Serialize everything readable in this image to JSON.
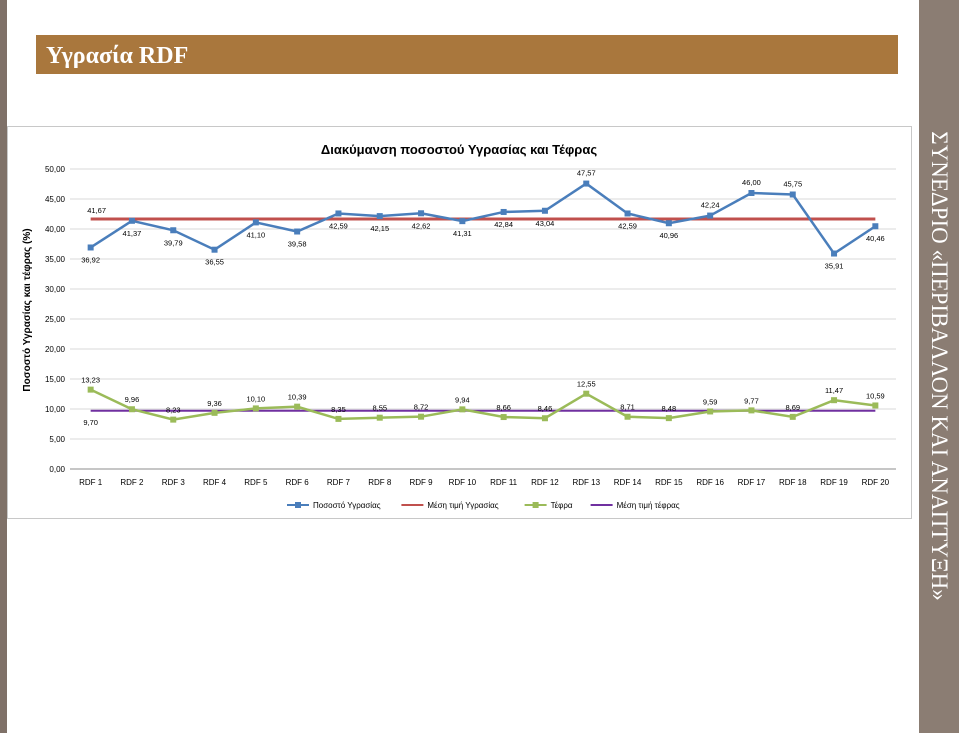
{
  "slide": {
    "title": "Υγρασία RDF",
    "side_text": "ΣΥΝΕΔΡΙΟ «ΠΕΡΙΒΑΛΛΟΝ ΚΑΙ ΑΝΑΠΤΥΞΗ»"
  },
  "colors": {
    "title_band": "#a9773d",
    "side_bar": "#8b7d73",
    "moisture": "#4a7ebb",
    "moisture_mean": "#c0504d",
    "ash": "#9bbb59",
    "ash_mean": "#7030a0"
  },
  "chart_data": {
    "type": "line",
    "title": "Διακύμανση ποσοστού Υγρασίας και Τέφρας",
    "ylabel": "Ποσοστό Υγρασίας και τέφρας (%)",
    "xlabel": "",
    "ylim": [
      0,
      50
    ],
    "yticks": [
      "0,00",
      "5,00",
      "10,00",
      "15,00",
      "20,00",
      "25,00",
      "30,00",
      "35,00",
      "40,00",
      "45,00",
      "50,00"
    ],
    "grid": true,
    "legend_position": "bottom",
    "categories": [
      "RDF 1",
      "RDF 2",
      "RDF 3",
      "RDF 4",
      "RDF 5",
      "RDF 6",
      "RDF 7",
      "RDF 8",
      "RDF 9",
      "RDF 10",
      "RDF 11",
      "RDF 12",
      "RDF 13",
      "RDF 14",
      "RDF 15",
      "RDF 16",
      "RDF 17",
      "RDF 18",
      "RDF 19",
      "RDF 20"
    ],
    "series": [
      {
        "name": "Ποσοστό Υγρασίας",
        "values": [
          36.92,
          41.37,
          39.79,
          36.55,
          41.1,
          39.58,
          42.59,
          42.15,
          42.62,
          41.31,
          42.84,
          43.04,
          47.57,
          42.59,
          40.96,
          42.24,
          46.0,
          45.75,
          35.91,
          40.46
        ],
        "labels": [
          "36,92",
          "41,37",
          "39,79",
          "36,55",
          "41,10",
          "39,58",
          "42,59",
          "42,15",
          "42,62",
          "41,31",
          "42,84",
          "43,04",
          "47,57",
          "42,59",
          "40,96",
          "42,24",
          "46,00",
          "45,75",
          "35,91",
          "40,46"
        ],
        "label_pos": [
          "below",
          "below",
          "below",
          "below",
          "below",
          "below",
          "below",
          "below",
          "below",
          "below",
          "below",
          "below",
          "above",
          "below",
          "below",
          "above",
          "above",
          "above",
          "below",
          "below"
        ]
      },
      {
        "name": "Μέση τιμή Υγρασίας",
        "values": [
          41.67,
          41.67,
          41.67,
          41.67,
          41.67,
          41.67,
          41.67,
          41.67,
          41.67,
          41.67,
          41.67,
          41.67,
          41.67,
          41.67,
          41.67,
          41.67,
          41.67,
          41.67,
          41.67,
          41.67
        ],
        "labels": [
          "41,67"
        ]
      },
      {
        "name": "Τέφρα",
        "values": [
          13.23,
          9.96,
          8.23,
          9.36,
          10.1,
          10.39,
          8.35,
          8.55,
          8.72,
          9.94,
          8.66,
          8.46,
          12.55,
          8.71,
          8.48,
          9.59,
          9.77,
          8.69,
          11.47,
          10.59
        ],
        "labels": [
          "13,23",
          "9,96",
          "8,23",
          "9,36",
          "10,10",
          "10,39",
          "8,35",
          "8,55",
          "8,72",
          "9,94",
          "8,66",
          "8,46",
          "12,55",
          "8,71",
          "8,48",
          "9,59",
          "9,77",
          "8,69",
          "11,47",
          "10,59"
        ]
      },
      {
        "name": "Μέση τιμή τέφρας",
        "values": [
          9.7,
          9.7,
          9.7,
          9.7,
          9.7,
          9.7,
          9.7,
          9.7,
          9.7,
          9.7,
          9.7,
          9.7,
          9.7,
          9.7,
          9.7,
          9.7,
          9.7,
          9.7,
          9.7,
          9.7
        ],
        "labels": [
          "9,70"
        ]
      }
    ]
  }
}
